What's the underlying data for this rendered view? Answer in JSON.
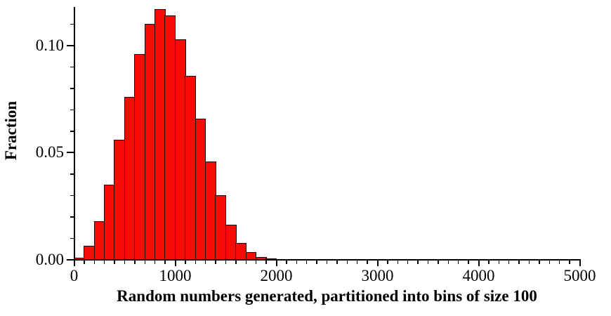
{
  "figure": {
    "background": "#ffffff",
    "bar_fill": "#f50d05",
    "bar_stroke": "#260400",
    "axis_color": "#000000",
    "text_color": "#000000"
  },
  "chart_data": {
    "type": "bar",
    "title": "",
    "xlabel": "Random numbers generated, partitioned into bins of size 100",
    "ylabel": "Fraction",
    "bin_size": 100,
    "bin_start": [
      0,
      100,
      200,
      300,
      400,
      500,
      600,
      700,
      800,
      900,
      1000,
      1100,
      1200,
      1300,
      1400,
      1500,
      1600,
      1700,
      1800,
      1900,
      2000
    ],
    "values": [
      0.001,
      0.0065,
      0.018,
      0.035,
      0.056,
      0.076,
      0.096,
      0.11,
      0.117,
      0.114,
      0.103,
      0.086,
      0.066,
      0.046,
      0.03,
      0.0165,
      0.008,
      0.0037,
      0.0013,
      0.0007,
      0.0003
    ],
    "xlim": [
      0,
      5000
    ],
    "ylim": [
      0,
      0.118
    ],
    "x_major_ticks": [
      0,
      1000,
      2000,
      3000,
      4000,
      5000
    ],
    "x_tick_labels": [
      "0",
      "1000",
      "2000",
      "3000",
      "4000",
      "5000"
    ],
    "x_minor_tick_step": 100,
    "y_major_ticks": [
      0,
      0.05,
      0.1
    ],
    "y_tick_labels": [
      "0.00",
      "0.05",
      "0.10"
    ],
    "y_minor_tick_step": 0.01,
    "grid": false,
    "legend": null
  }
}
